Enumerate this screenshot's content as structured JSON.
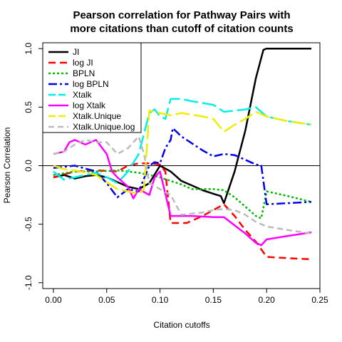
{
  "chart_data": {
    "type": "line",
    "title_lines": [
      "Pearson correlation for Pathway Pairs with",
      "more citations than cutoff of citation counts"
    ],
    "xlabel": "Citation cutoffs",
    "ylabel": "Pearson Correlation",
    "xlim": [
      -0.01,
      0.25
    ],
    "ylim": [
      -1.05,
      1.05
    ],
    "xticks": [
      0.0,
      0.05,
      0.1,
      0.15,
      0.2,
      0.25
    ],
    "xtick_labels": [
      "0.00",
      "0.05",
      "0.10",
      "0.15",
      "0.20",
      "0.25"
    ],
    "yticks": [
      -1.0,
      -0.5,
      0.0,
      0.5,
      1.0
    ],
    "ytick_labels": [
      "-1.0",
      "-0.5",
      "0.0",
      "0.5",
      "1.0"
    ],
    "hline": 0,
    "legend_position": "top-left",
    "series": [
      {
        "name": "JI",
        "color": "#000000",
        "dash": "solid",
        "x": [
          0.0,
          0.01,
          0.02,
          0.03,
          0.04,
          0.05,
          0.06,
          0.07,
          0.08,
          0.09,
          0.1,
          0.11,
          0.12,
          0.13,
          0.14,
          0.15,
          0.157,
          0.16,
          0.17,
          0.18,
          0.19,
          0.197,
          0.2,
          0.21,
          0.22,
          0.23,
          0.242
        ],
        "y": [
          -0.1,
          -0.08,
          -0.11,
          -0.09,
          -0.08,
          -0.1,
          -0.14,
          -0.18,
          -0.2,
          -0.15,
          0.0,
          -0.05,
          -0.13,
          -0.17,
          -0.21,
          -0.24,
          -0.26,
          -0.32,
          -0.05,
          0.3,
          0.75,
          0.99,
          1.0,
          1.0,
          1.0,
          1.0,
          1.0
        ]
      },
      {
        "name": "log JI",
        "color": "#ff0000",
        "dash": "10,6",
        "x": [
          0.0,
          0.02,
          0.04,
          0.06,
          0.07,
          0.08,
          0.09,
          0.1,
          0.105,
          0.11,
          0.125,
          0.13,
          0.14,
          0.15,
          0.16,
          0.17,
          0.18,
          0.19,
          0.2,
          0.22,
          0.242
        ],
        "y": [
          -0.1,
          -0.05,
          -0.04,
          -0.05,
          0.0,
          0.02,
          0.02,
          0.01,
          -0.05,
          -0.49,
          -0.49,
          -0.47,
          -0.43,
          -0.38,
          -0.33,
          -0.43,
          -0.55,
          -0.65,
          -0.78,
          -0.79,
          -0.8
        ]
      },
      {
        "name": "BPLN",
        "color": "#00bb00",
        "dash": "3,3",
        "x": [
          0.0,
          0.02,
          0.04,
          0.06,
          0.08,
          0.1,
          0.11,
          0.12,
          0.13,
          0.15,
          0.16,
          0.17,
          0.18,
          0.19,
          0.195,
          0.2,
          0.22,
          0.242
        ],
        "y": [
          -0.08,
          -0.05,
          -0.05,
          -0.04,
          -0.06,
          -0.1,
          -0.13,
          -0.16,
          -0.2,
          -0.2,
          -0.21,
          -0.27,
          -0.35,
          -0.43,
          -0.45,
          -0.22,
          -0.26,
          -0.31
        ]
      },
      {
        "name": "log BPLN",
        "color": "#0000ee",
        "dash": "12,4,3,4",
        "x": [
          0.0,
          0.02,
          0.04,
          0.05,
          0.06,
          0.07,
          0.08,
          0.09,
          0.095,
          0.1,
          0.105,
          0.11,
          0.112,
          0.12,
          0.14,
          0.15,
          0.16,
          0.17,
          0.18,
          0.19,
          0.195,
          0.2,
          0.22,
          0.242
        ],
        "y": [
          -0.02,
          0.0,
          -0.05,
          -0.15,
          -0.27,
          -0.2,
          -0.22,
          0.0,
          0.03,
          0.02,
          0.15,
          0.22,
          0.32,
          0.25,
          0.13,
          0.08,
          0.1,
          0.09,
          0.05,
          0.01,
          0.0,
          -0.33,
          -0.32,
          -0.31
        ]
      },
      {
        "name": "Xtalk",
        "color": "#00eeee",
        "dash": "20,6",
        "x": [
          0.0,
          0.01,
          0.02,
          0.03,
          0.04,
          0.05,
          0.06,
          0.07,
          0.08,
          0.09,
          0.095,
          0.1,
          0.105,
          0.11,
          0.12,
          0.13,
          0.15,
          0.16,
          0.17,
          0.18,
          0.19,
          0.2,
          0.22,
          0.242
        ],
        "y": [
          -0.05,
          -0.12,
          -0.1,
          -0.08,
          -0.06,
          -0.1,
          -0.15,
          -0.05,
          0.1,
          0.45,
          0.48,
          0.42,
          0.4,
          0.57,
          0.57,
          0.55,
          0.52,
          0.46,
          0.47,
          0.48,
          0.5,
          0.42,
          0.38,
          0.35
        ]
      },
      {
        "name": "log Xtalk",
        "color": "#ff00ff",
        "dash": "solid",
        "x": [
          0.0,
          0.01,
          0.015,
          0.02,
          0.03,
          0.04,
          0.05,
          0.055,
          0.06,
          0.07,
          0.075,
          0.08,
          0.09,
          0.095,
          0.1,
          0.11,
          0.12,
          0.13,
          0.15,
          0.16,
          0.17,
          0.18,
          0.19,
          0.195,
          0.2,
          0.22,
          0.242
        ],
        "y": [
          0.1,
          0.12,
          0.2,
          0.22,
          0.18,
          0.22,
          0.1,
          -0.05,
          -0.1,
          -0.18,
          -0.28,
          -0.2,
          -0.25,
          -0.1,
          -0.05,
          -0.43,
          -0.43,
          -0.43,
          -0.44,
          -0.44,
          -0.51,
          -0.58,
          -0.66,
          -0.68,
          -0.63,
          -0.6,
          -0.57
        ]
      },
      {
        "name": "Xtalk.Unique",
        "color": "#eeee00",
        "dash": "20,6",
        "x": [
          0.0,
          0.01,
          0.02,
          0.04,
          0.06,
          0.07,
          0.08,
          0.085,
          0.09,
          0.1,
          0.11,
          0.12,
          0.14,
          0.15,
          0.16,
          0.17,
          0.18,
          0.19,
          0.2,
          0.22,
          0.242
        ],
        "y": [
          0.0,
          -0.03,
          -0.04,
          -0.08,
          -0.2,
          -0.22,
          -0.24,
          -0.2,
          0.47,
          0.45,
          0.43,
          0.45,
          0.42,
          0.4,
          0.29,
          0.35,
          0.4,
          0.46,
          0.42,
          0.38,
          0.35
        ]
      },
      {
        "name": "Xtalk.Unique.log",
        "color": "#bbbbbb",
        "dash": "8,5",
        "x": [
          0.0,
          0.01,
          0.02,
          0.03,
          0.04,
          0.05,
          0.055,
          0.06,
          0.07,
          0.08,
          0.085,
          0.09,
          0.1,
          0.11,
          0.12,
          0.14,
          0.15,
          0.16,
          0.17,
          0.18,
          0.19,
          0.2,
          0.22,
          0.242
        ],
        "y": [
          0.1,
          0.12,
          0.18,
          0.22,
          0.2,
          0.2,
          0.15,
          0.1,
          0.15,
          0.25,
          0.1,
          -0.15,
          -0.2,
          -0.25,
          -0.42,
          -0.4,
          -0.38,
          -0.37,
          -0.38,
          -0.42,
          -0.48,
          -0.52,
          -0.55,
          -0.58
        ]
      }
    ]
  }
}
